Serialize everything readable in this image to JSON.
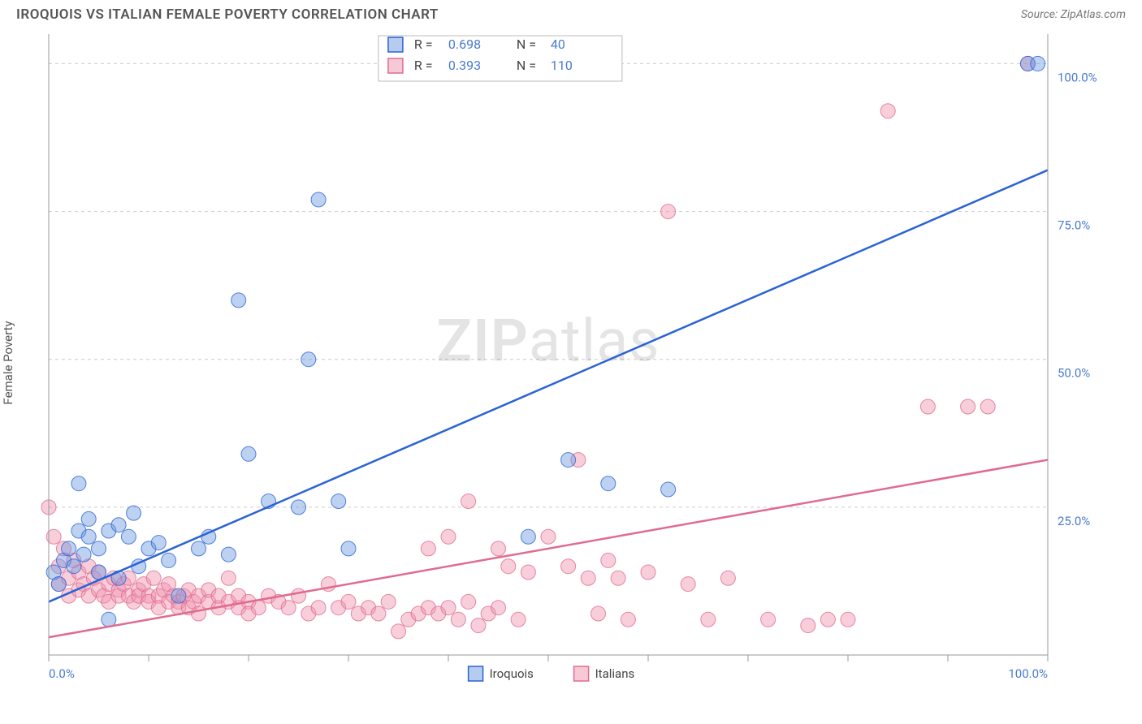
{
  "header": {
    "title": "IROQUOIS VS ITALIAN FEMALE POVERTY CORRELATION CHART",
    "source": "Source: ZipAtlas.com"
  },
  "chart": {
    "type": "scatter",
    "ylabel": "Female Poverty",
    "background_color": "#ffffff",
    "grid_color": "#cccccc",
    "axis_color": "#999999",
    "tick_label_color": "#4a7bd0",
    "xlim": [
      0,
      100
    ],
    "ylim": [
      0,
      105
    ],
    "xticks": [
      0,
      10,
      20,
      30,
      40,
      50,
      60,
      70,
      80,
      90,
      100
    ],
    "xtick_labels": {
      "0": "0.0%",
      "100": "100.0%"
    },
    "yticks": [
      25,
      50,
      75,
      100
    ],
    "ytick_labels": {
      "25": "25.0%",
      "50": "50.0%",
      "75": "75.0%",
      "100": "100.0%"
    },
    "marker_radius": 9,
    "marker_opacity": 0.45,
    "marker_stroke_opacity": 0.8,
    "line_width": 2.5,
    "watermark": "ZIPatlas",
    "series": [
      {
        "name": "Iroquois",
        "color": "#6d9ae0",
        "line_color": "#2a63d6",
        "r": "0.698",
        "n": "40",
        "trend": {
          "x1": 0,
          "y1": 9,
          "x2": 100,
          "y2": 82
        },
        "points": [
          [
            0.5,
            14
          ],
          [
            1,
            12
          ],
          [
            1.5,
            16
          ],
          [
            2,
            18
          ],
          [
            2.5,
            15
          ],
          [
            3,
            21
          ],
          [
            3,
            29
          ],
          [
            3.5,
            17
          ],
          [
            4,
            20
          ],
          [
            4,
            23
          ],
          [
            5,
            18
          ],
          [
            5,
            14
          ],
          [
            6,
            21
          ],
          [
            6,
            6
          ],
          [
            7,
            22
          ],
          [
            7,
            13
          ],
          [
            8,
            20
          ],
          [
            8.5,
            24
          ],
          [
            9,
            15
          ],
          [
            10,
            18
          ],
          [
            11,
            19
          ],
          [
            12,
            16
          ],
          [
            13,
            10
          ],
          [
            15,
            18
          ],
          [
            16,
            20
          ],
          [
            18,
            17
          ],
          [
            19,
            60
          ],
          [
            20,
            34
          ],
          [
            22,
            26
          ],
          [
            25,
            25
          ],
          [
            26,
            50
          ],
          [
            27,
            77
          ],
          [
            29,
            26
          ],
          [
            30,
            18
          ],
          [
            48,
            20
          ],
          [
            52,
            33
          ],
          [
            56,
            29
          ],
          [
            62,
            28
          ],
          [
            98,
            100
          ],
          [
            99,
            100
          ]
        ]
      },
      {
        "name": "Italians",
        "color": "#f093b0",
        "line_color": "#e06b8f",
        "r": "0.393",
        "n": "110",
        "trend": {
          "x1": 0,
          "y1": 3,
          "x2": 100,
          "y2": 33
        },
        "points": [
          [
            0,
            25
          ],
          [
            0.5,
            20
          ],
          [
            1,
            15
          ],
          [
            1,
            12
          ],
          [
            1.5,
            18
          ],
          [
            2,
            13
          ],
          [
            2,
            10
          ],
          [
            2.5,
            16
          ],
          [
            3,
            14
          ],
          [
            3,
            11
          ],
          [
            3.5,
            12
          ],
          [
            4,
            15
          ],
          [
            4,
            10
          ],
          [
            4.5,
            13
          ],
          [
            5,
            14
          ],
          [
            5,
            11
          ],
          [
            5.5,
            10
          ],
          [
            6,
            12
          ],
          [
            6,
            9
          ],
          [
            6.5,
            13
          ],
          [
            7,
            11
          ],
          [
            7,
            10
          ],
          [
            7.5,
            12
          ],
          [
            8,
            10
          ],
          [
            8,
            13
          ],
          [
            8.5,
            9
          ],
          [
            9,
            11
          ],
          [
            9,
            10
          ],
          [
            9.5,
            12
          ],
          [
            10,
            10
          ],
          [
            10,
            9
          ],
          [
            10.5,
            13
          ],
          [
            11,
            10
          ],
          [
            11,
            8
          ],
          [
            11.5,
            11
          ],
          [
            12,
            9
          ],
          [
            12,
            12
          ],
          [
            12.5,
            10
          ],
          [
            13,
            9
          ],
          [
            13,
            8
          ],
          [
            13.5,
            10
          ],
          [
            14,
            11
          ],
          [
            14,
            8
          ],
          [
            14.5,
            9
          ],
          [
            15,
            10
          ],
          [
            15,
            7
          ],
          [
            16,
            9
          ],
          [
            16,
            11
          ],
          [
            17,
            8
          ],
          [
            17,
            10
          ],
          [
            18,
            9
          ],
          [
            18,
            13
          ],
          [
            19,
            8
          ],
          [
            19,
            10
          ],
          [
            20,
            9
          ],
          [
            20,
            7
          ],
          [
            21,
            8
          ],
          [
            22,
            10
          ],
          [
            23,
            9
          ],
          [
            24,
            8
          ],
          [
            25,
            10
          ],
          [
            26,
            7
          ],
          [
            27,
            8
          ],
          [
            28,
            12
          ],
          [
            29,
            8
          ],
          [
            30,
            9
          ],
          [
            31,
            7
          ],
          [
            32,
            8
          ],
          [
            33,
            7
          ],
          [
            34,
            9
          ],
          [
            35,
            4
          ],
          [
            36,
            6
          ],
          [
            37,
            7
          ],
          [
            38,
            8
          ],
          [
            38,
            18
          ],
          [
            39,
            7
          ],
          [
            40,
            20
          ],
          [
            40,
            8
          ],
          [
            41,
            6
          ],
          [
            42,
            9
          ],
          [
            42,
            26
          ],
          [
            43,
            5
          ],
          [
            44,
            7
          ],
          [
            45,
            18
          ],
          [
            45,
            8
          ],
          [
            46,
            15
          ],
          [
            47,
            6
          ],
          [
            48,
            14
          ],
          [
            50,
            20
          ],
          [
            52,
            15
          ],
          [
            53,
            33
          ],
          [
            54,
            13
          ],
          [
            55,
            7
          ],
          [
            56,
            16
          ],
          [
            57,
            13
          ],
          [
            58,
            6
          ],
          [
            60,
            14
          ],
          [
            62,
            75
          ],
          [
            64,
            12
          ],
          [
            66,
            6
          ],
          [
            68,
            13
          ],
          [
            72,
            6
          ],
          [
            76,
            5
          ],
          [
            78,
            6
          ],
          [
            80,
            6
          ],
          [
            84,
            92
          ],
          [
            88,
            42
          ],
          [
            92,
            42
          ],
          [
            94,
            42
          ],
          [
            98,
            100
          ]
        ]
      }
    ],
    "bottom_legend": {
      "items": [
        {
          "label": "Iroquois",
          "color": "#6d9ae0",
          "border": "#2a63d6"
        },
        {
          "label": "Italians",
          "color": "#f093b0",
          "border": "#e06b8f"
        }
      ]
    }
  }
}
